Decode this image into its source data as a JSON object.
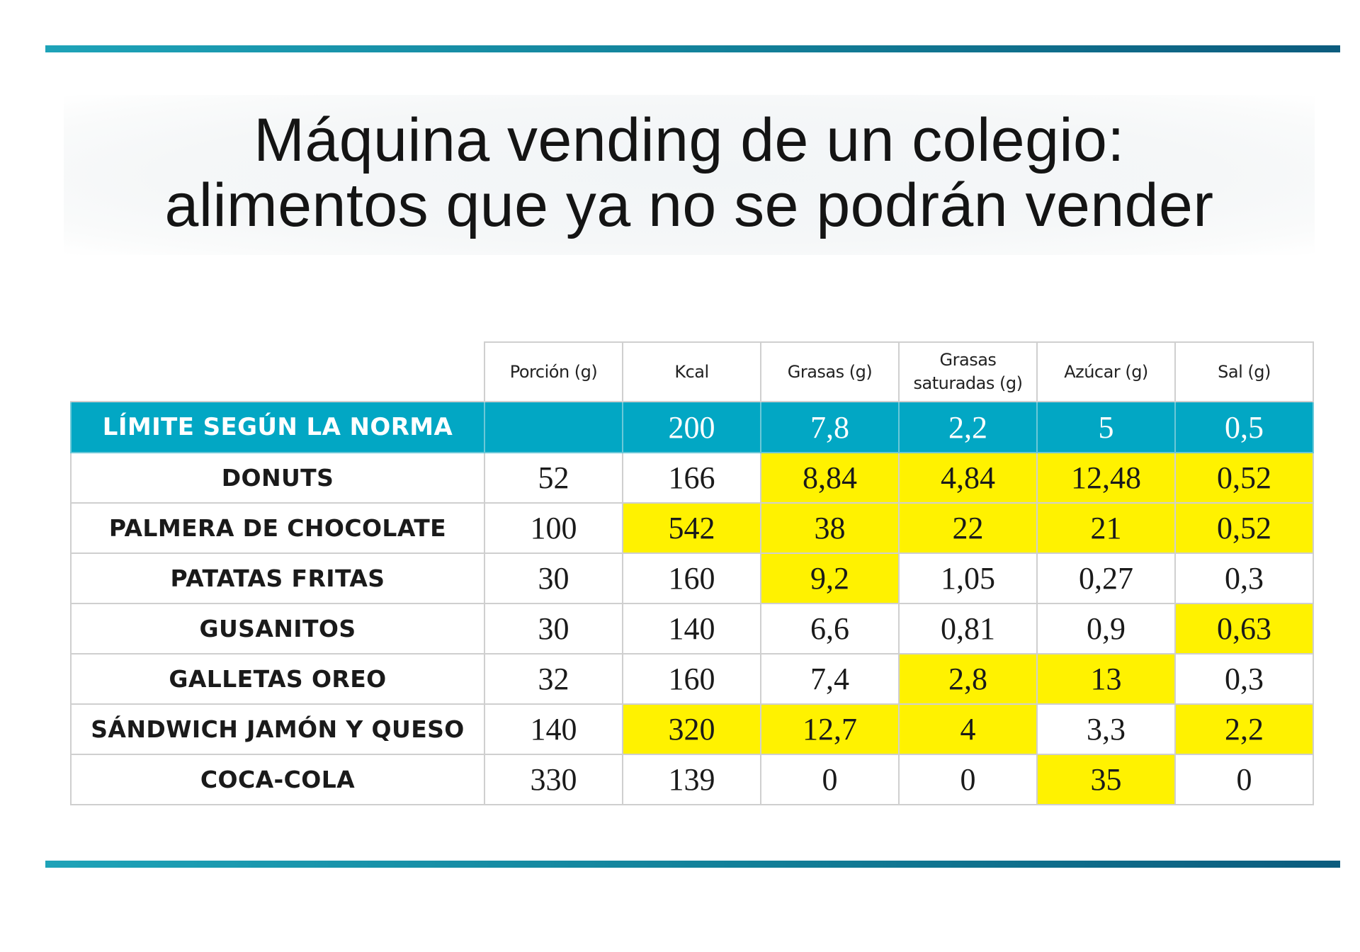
{
  "title_line1": "Máquina vending de un colegio:",
  "title_line2": "alimentos que ya no se podrán vender",
  "chart_data": {
    "type": "table",
    "title": "Máquina vending de un colegio: alimentos que ya no se podrán vender",
    "columns": [
      "Porción (g)",
      "Kcal",
      "Grasas (g)",
      "Grasas saturadas (g)",
      "Azúcar (g)",
      "Sal (g)"
    ],
    "column_header_lines": [
      [
        "Porción (g)"
      ],
      [
        "Kcal"
      ],
      [
        "Grasas (g)"
      ],
      [
        "Grasas",
        "saturadas (g)"
      ],
      [
        "Azúcar (g)"
      ],
      [
        "Sal (g)"
      ]
    ],
    "limit": {
      "label": "LÍMITE SEGÚN LA NORMA",
      "values": [
        "",
        "200",
        "7,8",
        "2,2",
        "5",
        "0,5"
      ]
    },
    "rows": [
      {
        "name": "DONUTS",
        "values": [
          "52",
          "166",
          "8,84",
          "4,84",
          "12,48",
          "0,52"
        ],
        "exceeds": [
          false,
          false,
          true,
          true,
          true,
          true
        ]
      },
      {
        "name": "PALMERA DE CHOCOLATE",
        "values": [
          "100",
          "542",
          "38",
          "22",
          "21",
          "0,52"
        ],
        "exceeds": [
          false,
          true,
          true,
          true,
          true,
          true
        ]
      },
      {
        "name": "PATATAS FRITAS",
        "values": [
          "30",
          "160",
          "9,2",
          "1,05",
          "0,27",
          "0,3"
        ],
        "exceeds": [
          false,
          false,
          true,
          false,
          false,
          false
        ]
      },
      {
        "name": "GUSANITOS",
        "values": [
          "30",
          "140",
          "6,6",
          "0,81",
          "0,9",
          "0,63"
        ],
        "exceeds": [
          false,
          false,
          false,
          false,
          false,
          true
        ]
      },
      {
        "name": "GALLETAS OREO",
        "values": [
          "32",
          "160",
          "7,4",
          "2,8",
          "13",
          "0,3"
        ],
        "exceeds": [
          false,
          false,
          false,
          true,
          true,
          false
        ]
      },
      {
        "name": "SÁNDWICH JAMÓN Y QUESO",
        "values": [
          "140",
          "320",
          "12,7",
          "4",
          "3,3",
          "2,2"
        ],
        "exceeds": [
          false,
          true,
          true,
          true,
          false,
          true
        ]
      },
      {
        "name": "COCA-COLA",
        "values": [
          "330",
          "139",
          "0",
          "0",
          "35",
          "0"
        ],
        "exceeds": [
          false,
          false,
          false,
          false,
          true,
          false
        ]
      }
    ],
    "colors": {
      "accent": "#02a7c4",
      "highlight": "#fff200",
      "rule": "#127f98"
    }
  }
}
